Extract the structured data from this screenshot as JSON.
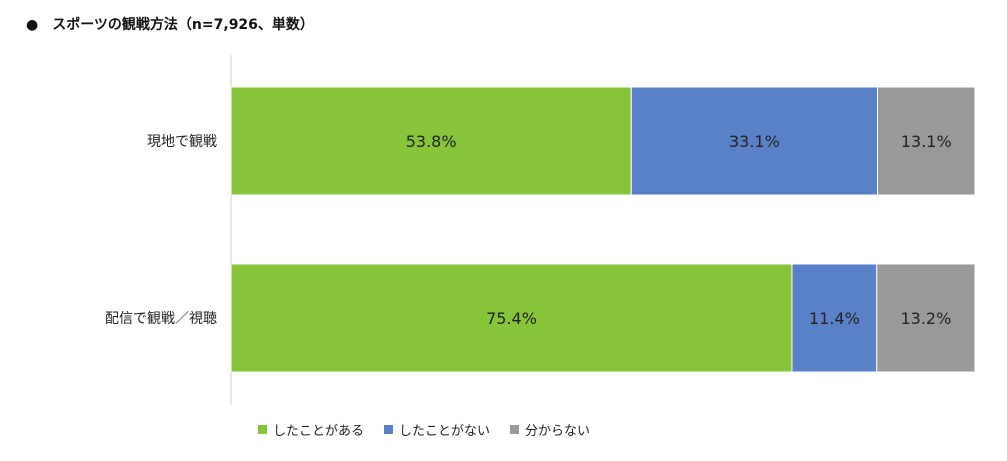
{
  "chart_data": {
    "type": "bar",
    "stacked": true,
    "orientation": "horizontal",
    "title": "●　スポーツの観戦方法（n=7,926、単数）",
    "categories": [
      "現地で観戦",
      "配信で観戦／視聴"
    ],
    "series": [
      {
        "name": "したことがある",
        "color": "#86C53A",
        "values": [
          53.8,
          75.4
        ]
      },
      {
        "name": "したことがない",
        "color": "#5A80C8",
        "values": [
          33.1,
          11.4
        ]
      },
      {
        "name": "分からない",
        "color": "#999999",
        "values": [
          13.1,
          13.2
        ]
      }
    ],
    "value_suffix": "%",
    "xlim": [
      0,
      100
    ],
    "legend_position": "bottom",
    "grid": false
  }
}
